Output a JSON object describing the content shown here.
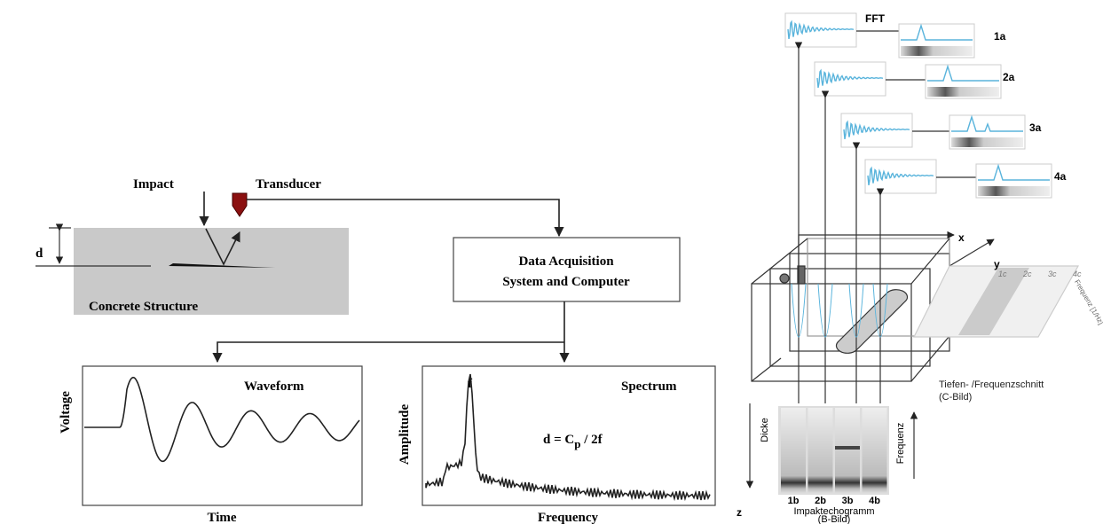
{
  "left": {
    "impact": "Impact",
    "transducer": "Transducer",
    "d": "d",
    "structure": "Concrete Structure",
    "daq": [
      "Data Acquisition",
      "System and Computer"
    ],
    "waveform": {
      "title": "Waveform",
      "ylabel": "Voltage",
      "xlabel": "Time"
    },
    "spectrum": {
      "title": "Spectrum",
      "ylabel": "Amplitude",
      "xlabel": "Frequency",
      "peak": "f",
      "formula": {
        "lhs": "d = C",
        "sub": "p",
        "rhs": " / 2f"
      }
    }
  },
  "right": {
    "fft": "FFT",
    "a_labels": [
      "1a",
      "2a",
      "3a",
      "4a"
    ],
    "axes": {
      "x": "x",
      "y": "y",
      "z": "z"
    },
    "c_labels": [
      "1c",
      "2c",
      "3c",
      "4c"
    ],
    "c_axis": "Frequenz [1/Hz]",
    "c_title": [
      "Tiefen- /Frequenzschnitt",
      "(C-Bild)"
    ],
    "dicke": "Dicke",
    "frequenz": "Frequenz",
    "b_labels": [
      "1b",
      "2b",
      "3b",
      "4b"
    ],
    "b_title": [
      "Impaktechogramm",
      "(B-Bild)"
    ]
  }
}
